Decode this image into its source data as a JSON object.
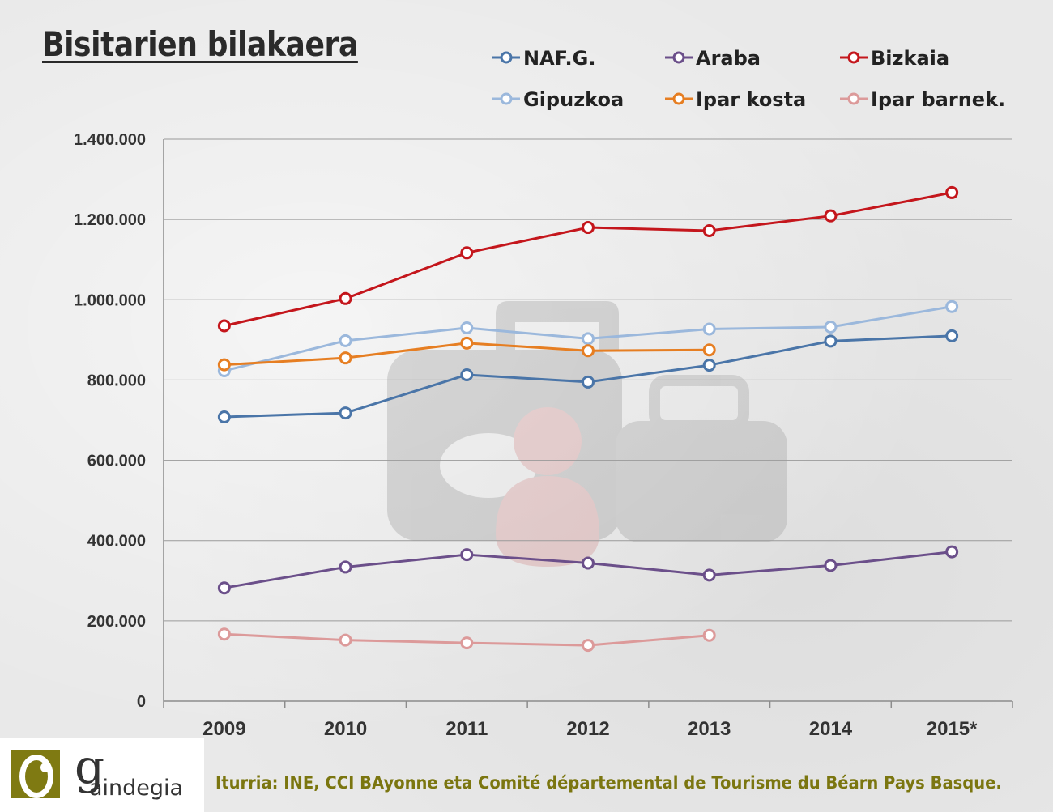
{
  "title": "Bisitarien bilakaera",
  "source": "Iturria: INE, CCI BAyonne eta Comité départemental de Tourisme du Béarn Pays Basque.",
  "logo": {
    "initial": "g",
    "name": "aindegia",
    "mark_color": "#7f7a12"
  },
  "chart_data": {
    "type": "line",
    "categories": [
      "2009",
      "2010",
      "2011",
      "2012",
      "2013",
      "2014",
      "2015*"
    ],
    "yticks": [
      "0",
      "200.000",
      "400.000",
      "600.000",
      "800.000",
      "1.000.000",
      "1.200.000",
      "1.400.000"
    ],
    "ylim": [
      0,
      1400000
    ],
    "grid": true,
    "legend_position": "top",
    "series": [
      {
        "name": "NAF.G.",
        "color": "#4a75a8",
        "values": [
          708000,
          718000,
          813000,
          795000,
          837000,
          897000,
          910000
        ]
      },
      {
        "name": "Araba",
        "color": "#6b4f8a",
        "values": [
          282000,
          334000,
          365000,
          344000,
          314000,
          338000,
          372000
        ]
      },
      {
        "name": "Bizkaia",
        "color": "#c4161c",
        "values": [
          935000,
          1003000,
          1117000,
          1180000,
          1172000,
          1209000,
          1267000
        ]
      },
      {
        "name": "Gipuzkoa",
        "color": "#9bb8dc",
        "values": [
          823000,
          898000,
          930000,
          903000,
          927000,
          932000,
          983000
        ]
      },
      {
        "name": "Ipar kosta",
        "color": "#e67e22",
        "values": [
          838000,
          855000,
          892000,
          873000,
          875000,
          null,
          null
        ]
      },
      {
        "name": "Ipar barnek.",
        "color": "#dc9a9a",
        "values": [
          167000,
          152000,
          145000,
          139000,
          164000,
          null,
          null
        ]
      }
    ]
  }
}
